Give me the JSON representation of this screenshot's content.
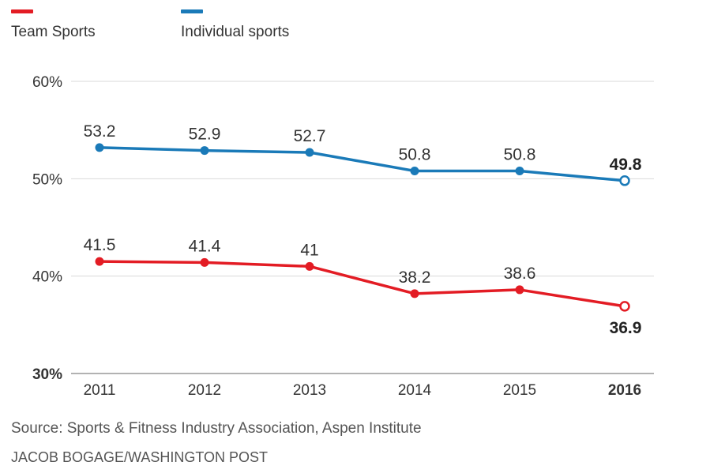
{
  "legend": {
    "items": [
      {
        "label": "Team Sports",
        "color": "#e31c24"
      },
      {
        "label": "Individual sports",
        "color": "#1a7ab8"
      }
    ]
  },
  "chart_data": {
    "type": "line",
    "title": "",
    "xlabel": "",
    "ylabel": "",
    "x": [
      "2011",
      "2012",
      "2013",
      "2014",
      "2015",
      "2016"
    ],
    "highlight_x": "2016",
    "ylim": [
      30,
      60
    ],
    "yticks": [
      {
        "value": 60,
        "label": "60%"
      },
      {
        "value": 50,
        "label": "50%"
      },
      {
        "value": 40,
        "label": "40%"
      },
      {
        "value": 30,
        "label": "30%"
      }
    ],
    "grid": true,
    "legend_position": "top-left",
    "series": [
      {
        "name": "Team Sports",
        "color": "#e31c24",
        "values": [
          41.5,
          41.4,
          41,
          38.2,
          38.6,
          36.9
        ],
        "labels": [
          "41.5",
          "41.4",
          "41",
          "38.2",
          "38.6",
          "36.9"
        ]
      },
      {
        "name": "Individual sports",
        "color": "#1a7ab8",
        "values": [
          53.2,
          52.9,
          52.7,
          50.8,
          50.8,
          49.8
        ],
        "labels": [
          "53.2",
          "52.9",
          "52.7",
          "50.8",
          "50.8",
          "49.8"
        ]
      }
    ]
  },
  "footer": {
    "source": "Source: Sports & Fitness Industry Association, Aspen Institute",
    "credit": "JACOB BOGAGE/WASHINGTON POST"
  }
}
